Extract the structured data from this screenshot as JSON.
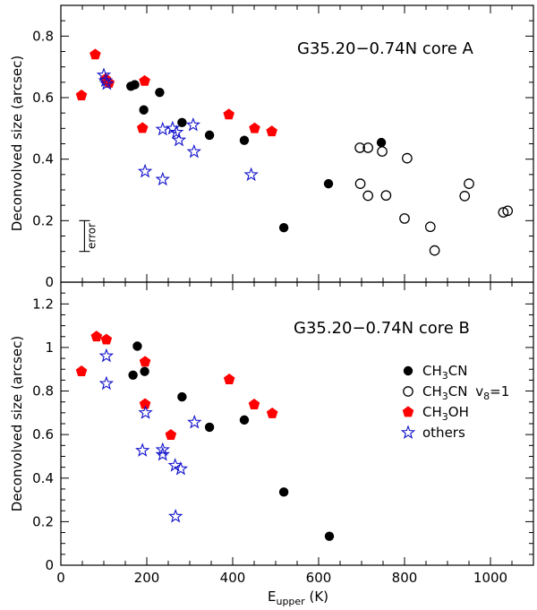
{
  "chart_data": [
    {
      "type": "scatter",
      "panel": "top",
      "title": "G35.20−0.74N core A",
      "xlabel": "Eupper (K)",
      "ylabel": "Deconvolved size (arcsec)",
      "xlim": [
        0,
        1100
      ],
      "ylim": [
        0,
        0.9
      ],
      "yticks": [
        0,
        0.2,
        0.4,
        0.6,
        0.8
      ],
      "ytick_labels": [
        "0",
        "0.2",
        "0.4",
        "0.6",
        "0.8"
      ],
      "error_bar": {
        "label": "error",
        "x": 55,
        "y_low": 0.1,
        "y_high": 0.2
      },
      "series": [
        {
          "name": "CH3CN",
          "marker": "filled-circle",
          "color": "#000000",
          "points": [
            [
              163,
              0.637
            ],
            [
              172,
              0.642
            ],
            [
              193,
              0.56
            ],
            [
              230,
              0.617
            ],
            [
              282,
              0.519
            ],
            [
              346,
              0.478
            ],
            [
              427,
              0.461
            ],
            [
              519,
              0.177
            ],
            [
              623,
              0.32
            ],
            [
              746,
              0.454
            ]
          ]
        },
        {
          "name": "CH3CN v8=1",
          "marker": "open-circle",
          "color": "#000000",
          "points": [
            [
              696,
              0.437
            ],
            [
              715,
              0.437
            ],
            [
              748,
              0.425
            ],
            [
              757,
              0.282
            ],
            [
              715,
              0.281
            ],
            [
              697,
              0.32
            ],
            [
              806,
              0.403
            ],
            [
              800,
              0.207
            ],
            [
              860,
              0.18
            ],
            [
              870,
              0.103
            ],
            [
              940,
              0.28
            ],
            [
              950,
              0.32
            ],
            [
              1030,
              0.227
            ],
            [
              1040,
              0.232
            ]
          ]
        },
        {
          "name": "CH3OH",
          "marker": "pentagon",
          "color": "#ff0000",
          "points": [
            [
              48,
              0.607
            ],
            [
              80,
              0.74
            ],
            [
              104,
              0.66
            ],
            [
              112,
              0.648
            ],
            [
              190,
              0.501
            ],
            [
              195,
              0.654
            ],
            [
              391,
              0.545
            ],
            [
              451,
              0.5
            ],
            [
              491,
              0.49
            ]
          ]
        },
        {
          "name": "others",
          "marker": "star",
          "color": "#1111cc",
          "points": [
            [
              100,
              0.673
            ],
            [
              104,
              0.655
            ],
            [
              107,
              0.645
            ],
            [
              196,
              0.36
            ],
            [
              237,
              0.334
            ],
            [
              237,
              0.497
            ],
            [
              260,
              0.5
            ],
            [
              269,
              0.487
            ],
            [
              275,
              0.462
            ],
            [
              308,
              0.511
            ],
            [
              310,
              0.424
            ],
            [
              443,
              0.349
            ]
          ]
        }
      ]
    },
    {
      "type": "scatter",
      "panel": "bottom",
      "title": "G35.20−0.74N core B",
      "xlabel": "Eupper (K)",
      "ylabel": "Deconvolved size (arcsec)",
      "xlim": [
        0,
        1100
      ],
      "ylim": [
        0,
        1.3
      ],
      "xticks": [
        0,
        200,
        400,
        600,
        800,
        1000
      ],
      "xtick_labels": [
        "0",
        "200",
        "400",
        "600",
        "800",
        "1000"
      ],
      "yticks": [
        0,
        0.2,
        0.4,
        0.6,
        0.8,
        1,
        1.2
      ],
      "ytick_labels": [
        "0",
        "0.2",
        "0.4",
        "0.6",
        "0.8",
        "1",
        "1.2"
      ],
      "legend": {
        "position": "right",
        "entries": [
          {
            "label": "CH",
            "sub": "3",
            "tail": "CN",
            "vib": "",
            "marker": "filled-circle",
            "color": "#000000"
          },
          {
            "label": "CH",
            "sub": "3",
            "tail": "CN",
            "vib": "v8=1",
            "marker": "open-circle",
            "color": "#000000"
          },
          {
            "label": "CH",
            "sub": "3",
            "tail": "OH",
            "vib": "",
            "marker": "pentagon",
            "color": "#ff0000"
          },
          {
            "label": "others",
            "sub": "",
            "tail": "",
            "vib": "",
            "marker": "star",
            "color": "#1111cc"
          }
        ]
      },
      "series": [
        {
          "name": "CH3CN",
          "marker": "filled-circle",
          "color": "#000000",
          "points": [
            [
              168,
              0.873
            ],
            [
              178,
              1.006
            ],
            [
              195,
              0.89
            ],
            [
              282,
              0.773
            ],
            [
              346,
              0.634
            ],
            [
              427,
              0.667
            ],
            [
              519,
              0.336
            ],
            [
              625,
              0.133
            ]
          ]
        },
        {
          "name": "CH3OH",
          "marker": "pentagon",
          "color": "#ff0000",
          "points": [
            [
              48,
              0.89
            ],
            [
              83,
              1.05
            ],
            [
              106,
              1.036
            ],
            [
              196,
              0.934
            ],
            [
              196,
              0.74
            ],
            [
              256,
              0.598
            ],
            [
              392,
              0.853
            ],
            [
              450,
              0.738
            ],
            [
              492,
              0.697
            ]
          ]
        },
        {
          "name": "others",
          "marker": "star",
          "color": "#1111cc",
          "points": [
            [
              106,
              0.961
            ],
            [
              106,
              0.834
            ],
            [
              190,
              0.527
            ],
            [
              197,
              0.7
            ],
            [
              237,
              0.53
            ],
            [
              237,
              0.508
            ],
            [
              266,
              0.458
            ],
            [
              279,
              0.442
            ],
            [
              267,
              0.224
            ],
            [
              311,
              0.656
            ]
          ]
        }
      ]
    }
  ]
}
